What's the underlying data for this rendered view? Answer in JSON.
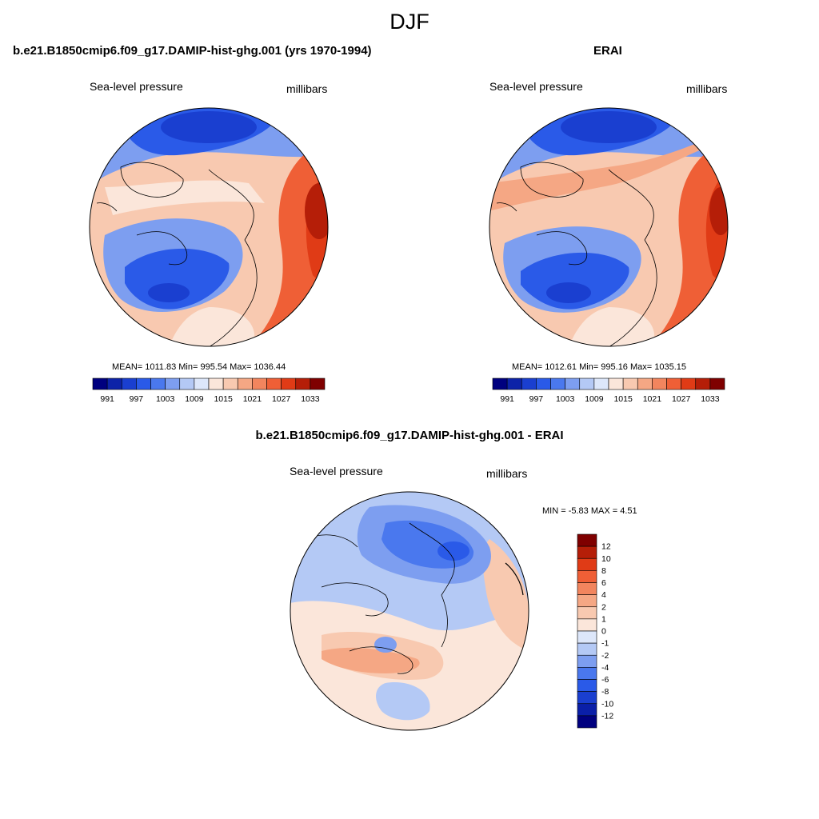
{
  "page_title": "DJF",
  "colors": {
    "slp_scale": [
      "#00007f",
      "#0d23a8",
      "#1a3fd0",
      "#2a5ae8",
      "#4a78ee",
      "#7d9ef0",
      "#b4c9f5",
      "#dde7fa",
      "#fbe6da",
      "#f8c9b0",
      "#f5a784",
      "#f2855e",
      "#ef5f36",
      "#e03b16",
      "#b51e08",
      "#7f0000"
    ],
    "diff_scale": [
      "#00007f",
      "#0a1fa8",
      "#1a3fd0",
      "#2a5ae8",
      "#4a78ee",
      "#7d9ef0",
      "#b4c9f5",
      "#dde7fa",
      "#fbe6da",
      "#f8c9b0",
      "#f5a784",
      "#f2855e",
      "#ef5f36",
      "#e03b16",
      "#b51e08",
      "#7f0000"
    ]
  },
  "panels": {
    "model": {
      "title": "b.e21.B1850cmip6.f09_g17.DAMIP-hist-ghg.001 (yrs 1970-1994)",
      "left_label": "Sea-level pressure",
      "right_label": "millibars",
      "stats": "MEAN= 1011.83  Min= 995.54  Max= 1036.44"
    },
    "obs": {
      "title": "ERAI",
      "left_label": "Sea-level pressure",
      "right_label": "millibars",
      "stats": "MEAN= 1012.61  Min= 995.16  Max= 1035.15"
    },
    "diff": {
      "title": "b.e21.B1850cmip6.f09_g17.DAMIP-hist-ghg.001 - ERAI",
      "left_label": "Sea-level pressure",
      "right_label": "millibars",
      "stats": "MIN =  -5.83 MAX =   4.51"
    }
  },
  "slp_colorbar": {
    "tick_labels": [
      "991",
      "997",
      "1003",
      "1009",
      "1015",
      "1021",
      "1027",
      "1033"
    ]
  },
  "diff_colorbar": {
    "tick_labels": [
      "12",
      "10",
      "8",
      "6",
      "4",
      "2",
      "1",
      "0",
      "-1",
      "-2",
      "-4",
      "-6",
      "-8",
      "-10",
      "-12"
    ]
  }
}
